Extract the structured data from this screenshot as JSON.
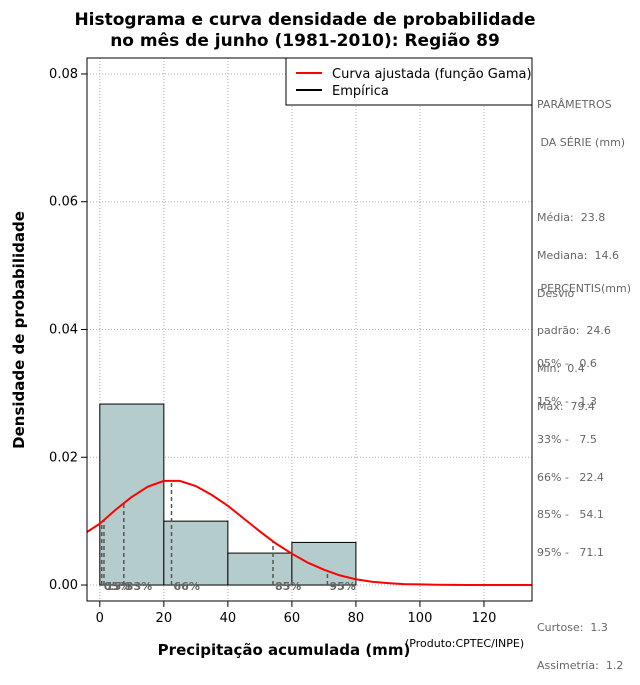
{
  "chart_data": {
    "type": "bar",
    "title": [
      "Histograma e curva densidade de probabilidade",
      "no mês de junho (1981-2010): Região 89"
    ],
    "xlabel": "Precipitação acumulada (mm)",
    "ylabel": "Densidade de probabilidade",
    "credit": "(Produto:CPTEC/INPE)",
    "xlim": [
      -4,
      135
    ],
    "ylim": [
      -0.0025,
      0.0825
    ],
    "xticks": [
      0,
      20,
      40,
      60,
      80,
      100,
      120
    ],
    "xtick_labels": [
      "0",
      "20",
      "40",
      "60",
      "80",
      "100",
      "120"
    ],
    "yticks": [
      0.0,
      0.02,
      0.04,
      0.06,
      0.08
    ],
    "ytick_labels": [
      "0.00",
      "0.02",
      "0.04",
      "0.06",
      "0.08"
    ],
    "grid": true,
    "legend_position": "top-right",
    "legend": [
      {
        "label": "Curva ajustada (função Gama)",
        "color": "#ff0000"
      },
      {
        "label": "Empírica",
        "color": "#000000"
      }
    ],
    "histogram": [
      {
        "x0": 0,
        "x1": 20,
        "density": 0.02833
      },
      {
        "x0": 20,
        "x1": 40,
        "density": 0.01
      },
      {
        "x0": 40,
        "x1": 60,
        "density": 0.005
      },
      {
        "x0": 60,
        "x1": 80,
        "density": 0.00667
      }
    ],
    "bar_color": "#b4cccc",
    "gamma_fit": {
      "x": [
        -4,
        0,
        5,
        10,
        15,
        20,
        25,
        30,
        35,
        40,
        45,
        50,
        55,
        60,
        65,
        70,
        75,
        80,
        85,
        90,
        95,
        100,
        105,
        110,
        115,
        120,
        125,
        130,
        135
      ],
      "y": [
        0.0083,
        0.0096,
        0.0118,
        0.0138,
        0.0154,
        0.0163,
        0.0163,
        0.0155,
        0.0141,
        0.0124,
        0.0104,
        0.0084,
        0.0065,
        0.0049,
        0.0035,
        0.0024,
        0.0015,
        0.0009,
        0.0005,
        0.0003,
        0.00015,
        0.0001,
        5e-05,
        2e-05,
        0.0,
        0.0,
        0.0,
        0.0,
        0.0
      ],
      "color": "#ff0000"
    },
    "percentile_markers": [
      {
        "label": "05%",
        "x": 0.6
      },
      {
        "label": "15%",
        "x": 1.3
      },
      {
        "label": "33%",
        "x": 7.5
      },
      {
        "label": "66%",
        "x": 22.4
      },
      {
        "label": "85%",
        "x": 54.1
      },
      {
        "label": "95%",
        "x": 71.1
      }
    ]
  },
  "params": {
    "heading": [
      "PARÂMETROS",
      " DA SÉRIE (mm)"
    ],
    "lines": [
      "Média:  23.8",
      "Mediana:  14.6",
      "Desvio",
      "padrão:  24.6",
      "Mín:  0.4",
      "Máx:  79.4"
    ]
  },
  "percentis": {
    "heading": " PERCENTIS(mm)",
    "lines": [
      "05% -   0.6",
      "15% -   1.3",
      "33% -   7.5",
      "66% -   22.4",
      "85% -   54.1",
      "95% -   71.1"
    ],
    "stats": [
      "Curtose:  1.3",
      "Assimetria:  1.2"
    ]
  }
}
